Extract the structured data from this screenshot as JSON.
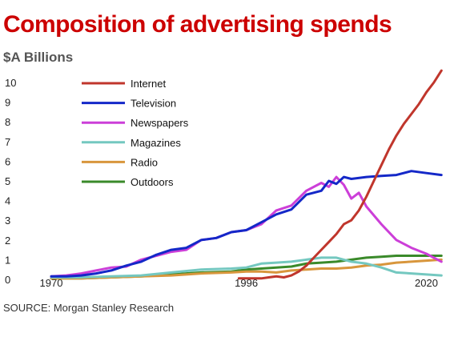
{
  "title": "Composition of advertising spends",
  "subtitle": "$A Billions",
  "source": "SOURCE: Morgan Stanley Research",
  "chart_data": {
    "type": "line",
    "xlim": [
      1970,
      2024
    ],
    "ylim": [
      0,
      10
    ],
    "x_ticks": [
      1970,
      1996,
      2020
    ],
    "y_ticks": [
      0,
      1,
      2,
      3,
      4,
      5,
      6,
      7,
      8,
      9,
      10
    ],
    "grid": false,
    "legend_placement": "top-left",
    "series": [
      {
        "name": "Internet",
        "color": "#c0362c",
        "x": [
          1995,
          1997,
          1998,
          1999,
          2000,
          2001,
          2002,
          2003,
          2004,
          2005,
          2006,
          2007,
          2008,
          2009,
          2010,
          2011,
          2012,
          2013,
          2014,
          2015,
          2016,
          2017,
          2018,
          2019,
          2020,
          2021,
          2022
        ],
        "y": [
          0.05,
          0.05,
          0.05,
          0.1,
          0.15,
          0.1,
          0.2,
          0.4,
          0.7,
          1.1,
          1.5,
          1.9,
          2.3,
          2.8,
          3.0,
          3.5,
          4.2,
          5.0,
          5.8,
          6.6,
          7.3,
          7.9,
          8.4,
          8.9,
          9.5,
          10.0,
          10.6
        ]
      },
      {
        "name": "Television",
        "color": "#1428c8",
        "x": [
          1970,
          1972,
          1974,
          1976,
          1978,
          1980,
          1982,
          1984,
          1986,
          1988,
          1990,
          1992,
          1994,
          1996,
          1998,
          2000,
          2002,
          2004,
          2006,
          2007,
          2008,
          2009,
          2010,
          2012,
          2014,
          2016,
          2018,
          2020,
          2022
        ],
        "y": [
          0.15,
          0.15,
          0.2,
          0.3,
          0.45,
          0.7,
          0.9,
          1.25,
          1.5,
          1.6,
          2.0,
          2.1,
          2.4,
          2.5,
          2.9,
          3.3,
          3.55,
          4.3,
          4.5,
          5.0,
          4.85,
          5.2,
          5.1,
          5.2,
          5.25,
          5.3,
          5.5,
          5.4,
          5.3
        ]
      },
      {
        "name": "Newspapers",
        "color": "#cc3fd8",
        "x": [
          1970,
          1972,
          1974,
          1976,
          1978,
          1980,
          1982,
          1984,
          1986,
          1988,
          1990,
          1992,
          1994,
          1996,
          1998,
          2000,
          2002,
          2004,
          2006,
          2007,
          2008,
          2009,
          2010,
          2011,
          2012,
          2014,
          2016,
          2018,
          2020,
          2022
        ],
        "y": [
          0.15,
          0.2,
          0.3,
          0.45,
          0.6,
          0.65,
          1.0,
          1.2,
          1.4,
          1.5,
          2.0,
          2.1,
          2.4,
          2.5,
          2.8,
          3.5,
          3.75,
          4.5,
          4.9,
          4.7,
          5.2,
          4.8,
          4.1,
          4.4,
          3.7,
          2.8,
          2.0,
          1.6,
          1.3,
          0.9
        ]
      },
      {
        "name": "Magazines",
        "color": "#74c8c0",
        "x": [
          1970,
          1974,
          1978,
          1982,
          1986,
          1990,
          1994,
          1996,
          1998,
          2000,
          2002,
          2004,
          2006,
          2008,
          2010,
          2012,
          2014,
          2016,
          2018,
          2020,
          2022
        ],
        "y": [
          0.1,
          0.1,
          0.15,
          0.2,
          0.35,
          0.5,
          0.55,
          0.6,
          0.8,
          0.85,
          0.9,
          1.0,
          1.1,
          1.1,
          0.9,
          0.8,
          0.6,
          0.35,
          0.3,
          0.25,
          0.2
        ]
      },
      {
        "name": "Radio",
        "color": "#d8963c",
        "x": [
          1970,
          1974,
          1978,
          1982,
          1986,
          1990,
          1994,
          1996,
          1998,
          2000,
          2002,
          2004,
          2006,
          2008,
          2010,
          2012,
          2014,
          2016,
          2018,
          2020,
          2022
        ],
        "y": [
          0.05,
          0.05,
          0.1,
          0.15,
          0.2,
          0.3,
          0.35,
          0.4,
          0.4,
          0.35,
          0.45,
          0.5,
          0.55,
          0.55,
          0.6,
          0.7,
          0.75,
          0.85,
          0.9,
          0.95,
          1.0
        ]
      },
      {
        "name": "Outdoors",
        "color": "#3a8a2a",
        "x": [
          1970,
          1974,
          1978,
          1982,
          1986,
          1990,
          1994,
          1996,
          1998,
          2000,
          2002,
          2004,
          2006,
          2008,
          2010,
          2012,
          2014,
          2016,
          2018,
          2020,
          2022
        ],
        "y": [
          0.05,
          0.05,
          0.1,
          0.15,
          0.25,
          0.35,
          0.4,
          0.5,
          0.55,
          0.6,
          0.65,
          0.8,
          0.85,
          0.9,
          1.0,
          1.1,
          1.15,
          1.2,
          1.2,
          1.2,
          1.2
        ]
      }
    ]
  }
}
